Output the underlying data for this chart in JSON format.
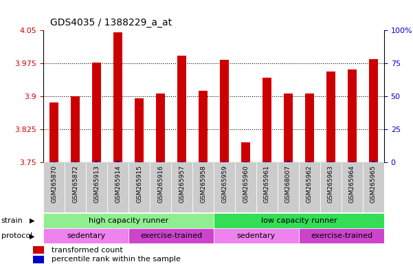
{
  "title": "GDS4035 / 1388229_a_at",
  "samples": [
    "GSM265870",
    "GSM265872",
    "GSM265913",
    "GSM265914",
    "GSM265915",
    "GSM265916",
    "GSM265957",
    "GSM265958",
    "GSM265959",
    "GSM265960",
    "GSM265961",
    "GSM268007",
    "GSM265962",
    "GSM265963",
    "GSM265964",
    "GSM265965"
  ],
  "red_values": [
    3.886,
    3.901,
    3.977,
    4.045,
    3.896,
    3.907,
    3.993,
    3.912,
    3.983,
    3.796,
    3.942,
    3.907,
    3.907,
    3.957,
    3.961,
    3.984
  ],
  "blue_values": [
    0.5,
    0.5,
    1.0,
    1.0,
    0.5,
    0.5,
    0.5,
    0.5,
    0.5,
    0.5,
    0.5,
    1.0,
    0.5,
    0.5,
    0.5,
    1.0
  ],
  "ylim_left": [
    3.75,
    4.05
  ],
  "ylim_right": [
    0,
    100
  ],
  "yticks_left": [
    3.75,
    3.825,
    3.9,
    3.975,
    4.05
  ],
  "yticks_right": [
    0,
    25,
    50,
    75,
    100
  ],
  "ytick_labels_left": [
    "3.75",
    "3.825",
    "3.9",
    "3.975",
    "4.05"
  ],
  "ytick_labels_right": [
    "0",
    "25",
    "50",
    "75",
    "100%"
  ],
  "grid_values": [
    3.825,
    3.9,
    3.975
  ],
  "strain_groups": [
    {
      "label": "high capacity runner",
      "start": 0,
      "end": 8,
      "color": "#90EE90"
    },
    {
      "label": "low capacity runner",
      "start": 8,
      "end": 16,
      "color": "#33DD55"
    }
  ],
  "protocol_groups": [
    {
      "label": "sedentary",
      "start": 0,
      "end": 4,
      "color": "#EE82EE"
    },
    {
      "label": "exercise-trained",
      "start": 4,
      "end": 8,
      "color": "#CC44CC"
    },
    {
      "label": "sedentary",
      "start": 8,
      "end": 12,
      "color": "#EE82EE"
    },
    {
      "label": "exercise-trained",
      "start": 12,
      "end": 16,
      "color": "#CC44CC"
    }
  ],
  "bar_color_red": "#CC0000",
  "bar_color_blue": "#0000CC",
  "bar_width": 0.4,
  "blue_bar_width": 0.15,
  "background_color": "#FFFFFF",
  "tick_color_left": "#CC0000",
  "tick_color_right": "#0000CC",
  "label_strain": "strain",
  "label_protocol": "protocol",
  "legend_red": "transformed count",
  "legend_blue": "percentile rank within the sample"
}
